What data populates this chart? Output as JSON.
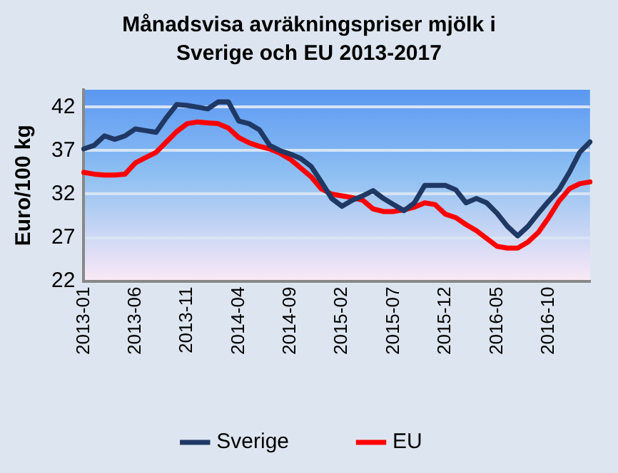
{
  "chart_data": {
    "type": "line",
    "title": "Månadsvisa avräkningspriser mjölk i Sverige och EU 2013-2017",
    "ylabel": "Euro/100 kg",
    "categories": [
      "2013-01",
      null,
      null,
      null,
      null,
      "2013-06",
      null,
      null,
      null,
      null,
      "2013-11",
      null,
      null,
      null,
      null,
      "2014-04",
      null,
      null,
      null,
      null,
      "2014-09",
      null,
      null,
      null,
      null,
      "2015-02",
      null,
      null,
      null,
      null,
      "2015-07",
      null,
      null,
      null,
      null,
      "2015-12",
      null,
      null,
      null,
      null,
      "2016-05",
      null,
      null,
      null,
      null,
      "2016-10",
      null,
      null,
      null,
      null
    ],
    "series": [
      {
        "name": "Sverige",
        "color": "#1f3864",
        "values": [
          37.2,
          37.6,
          38.7,
          38.3,
          38.7,
          39.5,
          39.3,
          39.1,
          40.8,
          42.3,
          42.2,
          42.0,
          41.8,
          42.6,
          42.6,
          40.4,
          40.1,
          39.4,
          37.6,
          37.0,
          36.6,
          36.1,
          35.2,
          33.4,
          31.5,
          30.6,
          31.3,
          31.8,
          32.4,
          31.5,
          30.8,
          30.1,
          31.0,
          33.0,
          33.0,
          33.0,
          32.5,
          31.0,
          31.5,
          31.0,
          29.8,
          28.3,
          27.2,
          28.3,
          29.8,
          31.2,
          32.5,
          34.5,
          36.8,
          38.0
        ]
      },
      {
        "name": "EU",
        "color": "#ff0000",
        "values": [
          34.5,
          34.3,
          34.2,
          34.2,
          34.3,
          35.6,
          36.2,
          36.8,
          38.0,
          39.2,
          40.1,
          40.3,
          40.2,
          40.1,
          39.6,
          38.5,
          37.9,
          37.5,
          37.2,
          36.7,
          36.0,
          35.0,
          34.0,
          32.6,
          32.0,
          31.8,
          31.6,
          31.3,
          30.3,
          30.0,
          30.0,
          30.2,
          30.5,
          31.0,
          30.8,
          29.7,
          29.3,
          28.5,
          27.8,
          26.9,
          26.0,
          25.8,
          25.8,
          26.5,
          27.6,
          29.3,
          31.2,
          32.6,
          33.2,
          33.4
        ]
      }
    ],
    "ylim": [
      22,
      44
    ],
    "yticks": [
      22,
      27,
      32,
      37,
      42
    ],
    "grid": "y",
    "legend": "bottom",
    "marker": "none",
    "line_style": "solid"
  }
}
